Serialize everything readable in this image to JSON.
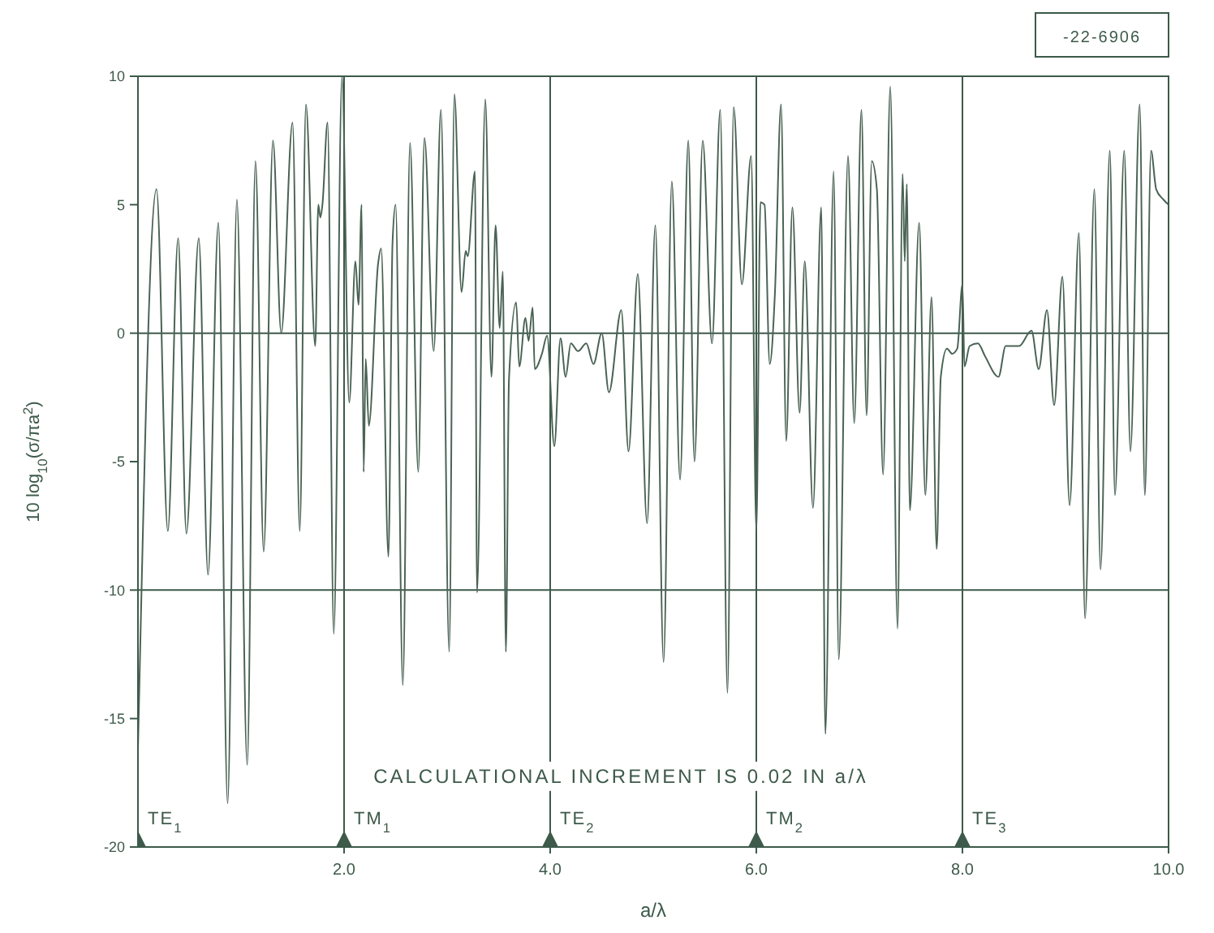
{
  "chart_data": {
    "type": "line",
    "xlabel": "a/λ",
    "ylabel": "10 log$_{10}$(σ/πa$^{2}$)",
    "annotations": [
      "CALCULATIONAL INCREMENT IS 0.02 IN a/λ",
      "-22-6906",
      "TE$_{1}$"
    ],
    "xlim": [
      0,
      10
    ],
    "ylim": [
      -20,
      10
    ],
    "xticks": [
      {
        "value": 2,
        "label": "2.0"
      },
      {
        "value": 4,
        "label": "4.0"
      },
      {
        "value": 6,
        "label": "6.0"
      },
      {
        "value": 8,
        "label": "8.0"
      },
      {
        "value": 10,
        "label": "10.0"
      }
    ],
    "yticks": [
      10,
      5,
      0,
      -5,
      -10,
      -15,
      -20
    ],
    "marker": "none",
    "line_style": "solid",
    "ref_lines": [
      {
        "axis": "x",
        "value": 2,
        "label": "TM$_{1}$",
        "color": "#3d5a4a"
      },
      {
        "axis": "x",
        "value": 4,
        "label": "TE$_{2}$",
        "color": "#3d5a4a"
      },
      {
        "axis": "x",
        "value": 6,
        "label": "TM$_{2}$",
        "color": "#3d5a4a"
      },
      {
        "axis": "x",
        "value": 8,
        "label": "TE$_{3}$",
        "color": "#3d5a4a"
      },
      {
        "axis": "y",
        "value": 0,
        "color": "#3d5a4a"
      },
      {
        "axis": "y",
        "value": -10,
        "color": "#3d5a4a"
      }
    ],
    "series": [
      {
        "color": "#4a6355",
        "x": [
          0,
          0.18,
          0.29,
          0.39,
          0.47,
          0.59,
          0.68,
          0.78,
          0.87,
          0.96,
          1.06,
          1.14,
          1.22,
          1.31,
          1.39,
          1.5,
          1.57,
          1.63,
          1.72,
          1.75,
          1.77,
          1.79,
          1.84,
          1.9,
          1.98,
          2.05,
          2.11,
          2.14,
          2.17,
          2.19,
          2.21,
          2.24,
          2.33,
          2.36,
          2.43,
          2.47,
          2.5,
          2.57,
          2.64,
          2.72,
          2.78,
          2.87,
          2.94,
          3.02,
          3.07,
          3.14,
          3.18,
          3.2,
          3.27,
          3.29,
          3.37,
          3.43,
          3.47,
          3.51,
          3.54,
          3.57,
          3.6,
          3.67,
          3.7,
          3.76,
          3.79,
          3.83,
          3.85,
          3.92,
          3.97,
          4.04,
          4.1,
          4.15,
          4.2,
          4.27,
          4.35,
          4.42,
          4.5,
          4.57,
          4.69,
          4.76,
          4.85,
          4.94,
          5.02,
          5.1,
          5.18,
          5.26,
          5.34,
          5.4,
          5.48,
          5.57,
          5.65,
          5.72,
          5.78,
          5.86,
          5.95,
          6,
          6.04,
          6.08,
          6.13,
          6.18,
          6.24,
          6.29,
          6.35,
          6.42,
          6.47,
          6.55,
          6.63,
          6.67,
          6.75,
          6.8,
          6.89,
          6.95,
          7.02,
          7.07,
          7.12,
          7.17,
          7.23,
          7.3,
          7.37,
          7.42,
          7.44,
          7.46,
          7.49,
          7.58,
          7.64,
          7.7,
          7.75,
          7.79,
          7.85,
          7.9,
          7.95,
          8,
          8.02,
          8.07,
          8.15,
          8.22,
          8.35,
          8.42,
          8.55,
          8.67,
          8.74,
          8.82,
          8.89,
          8.97,
          9.04,
          9.13,
          9.19,
          9.28,
          9.34,
          9.43,
          9.48,
          9.57,
          9.63,
          9.72,
          9.77,
          9.83,
          9.88,
          9.95,
          10
        ],
        "values": [
          -16.2,
          5.6,
          -7.7,
          3.7,
          -7.8,
          3.7,
          -9.4,
          4.3,
          -18.3,
          5.2,
          -16.8,
          6.7,
          -8.5,
          7.5,
          0,
          8.2,
          -7.7,
          8.9,
          -0.5,
          5,
          4.5,
          5,
          8.2,
          -11.7,
          10,
          -2.7,
          2.8,
          1.1,
          5,
          -5.4,
          -1,
          -3.6,
          2.7,
          3.3,
          -8.7,
          3.5,
          5,
          -13.7,
          7.4,
          -5.4,
          7.6,
          -0.7,
          8.7,
          -12.4,
          9.3,
          1.6,
          3.2,
          3,
          6.3,
          -10.1,
          9.1,
          -1.7,
          4.2,
          0.2,
          2.4,
          -12.4,
          -1.8,
          1.2,
          -1.3,
          0.6,
          -0.3,
          1,
          -1.4,
          -0.8,
          -0.1,
          -4.4,
          -0.2,
          -1.7,
          -0.4,
          -0.7,
          -0.4,
          -1.2,
          0,
          -2.3,
          0.9,
          -4.6,
          2.3,
          -7.4,
          4.2,
          -12.8,
          5.9,
          -5.7,
          7.5,
          -5,
          7.5,
          -0.4,
          8.7,
          -14,
          8.8,
          1.9,
          6.9,
          -7.7,
          5.1,
          5,
          -1.2,
          1.5,
          8.9,
          -4.2,
          4.9,
          -3.1,
          2.8,
          -6.8,
          4.9,
          -15.6,
          6.3,
          -12.7,
          6.9,
          -3.5,
          8.7,
          -3.2,
          6.7,
          5.6,
          -5.5,
          9.6,
          -11.5,
          6.2,
          2.8,
          5.8,
          -6.9,
          4.3,
          -6.3,
          1.4,
          -8.4,
          -1.7,
          -0.6,
          -0.8,
          -0.6,
          1.9,
          -1.3,
          -0.5,
          -0.4,
          -0.9,
          -1.7,
          -0.5,
          -0.5,
          0.1,
          -1.4,
          0.9,
          -2.8,
          2.2,
          -6.7,
          3.9,
          -11.1,
          5.6,
          -9.2,
          7.1,
          -6.3,
          7.1,
          -4.6,
          8.9,
          -6.3,
          7.1,
          5.6,
          5.2,
          5
        ]
      }
    ]
  }
}
